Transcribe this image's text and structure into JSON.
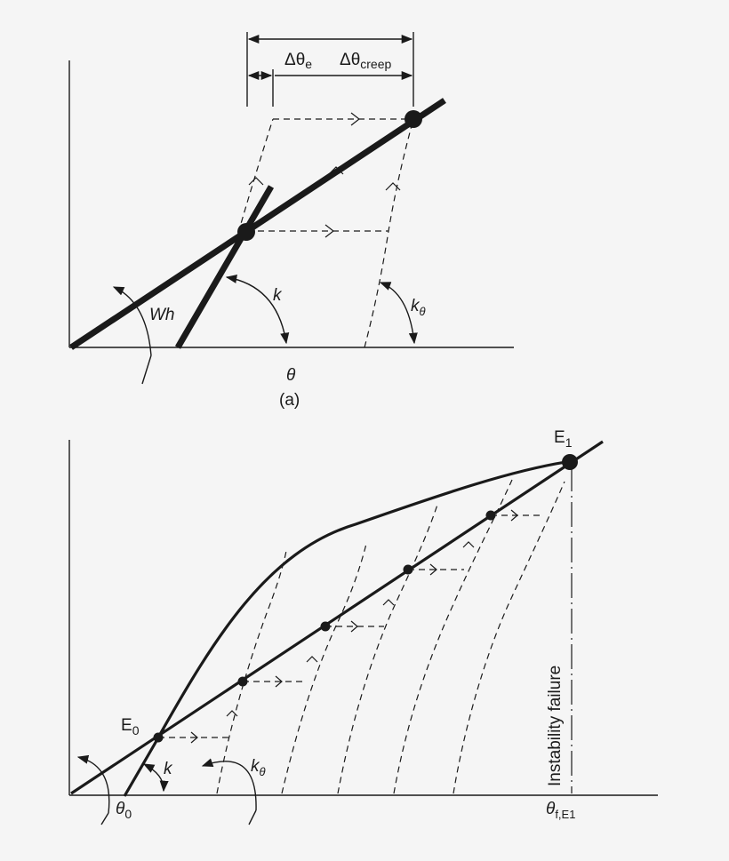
{
  "panel_a": {
    "caption": "(a)",
    "x_axis_label": "θ",
    "dim_delta_e": "Δθ",
    "dim_delta_e_sub": "e",
    "dim_delta_creep": "Δθ",
    "dim_delta_creep_sub": "creep",
    "label_wh": "Wh",
    "label_k": "k",
    "label_ktheta": "k",
    "label_ktheta_sub": "θ"
  },
  "panel_b": {
    "label_e0": "E",
    "label_e0_sub": "0",
    "label_e1": "E",
    "label_e1_sub": "1",
    "label_k": "k",
    "label_ktheta": "k",
    "label_ktheta_sub": "θ",
    "label_theta0": "θ",
    "label_theta0_sub": "0",
    "label_theta_f": "θ",
    "label_theta_f_sub": "f,E1",
    "vertical_label": "Instability failure"
  },
  "colors": {
    "background": "#f5f5f5",
    "ink": "#1a1a1a"
  }
}
